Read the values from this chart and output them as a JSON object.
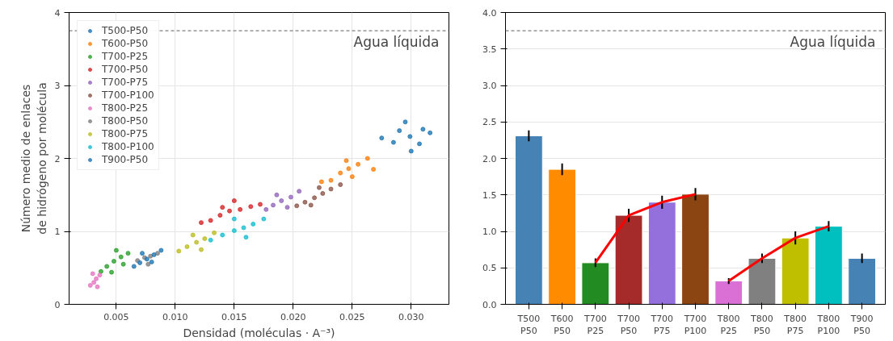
{
  "chart_data": [
    {
      "type": "scatter",
      "xlabel": "Densidad (moléculas · A⁻³)",
      "ylabel": "Número medio de enlaces\nde hidrógeno por molécula",
      "xlim": [
        0.001,
        0.0332
      ],
      "xticks": [
        0.005,
        {
          "value": 0.01,
          "label": "0.010"
        },
        0.015,
        {
          "value": 0.02,
          "label": "0.020"
        },
        0.025,
        {
          "value": 0.03,
          "label": "0.030"
        }
      ],
      "ylim": [
        0,
        4
      ],
      "yticks": [
        0,
        1,
        2,
        3,
        4
      ],
      "grid": true,
      "legend": "top left",
      "marker": "circle",
      "ref_lines": [
        {
          "axis": "y",
          "value": 3.75,
          "label": "Agua líquida",
          "color": "#808080",
          "line_style": "dashed"
        }
      ],
      "series": [
        {
          "name": "T500-P50",
          "color": "#1f77b4",
          "x": [
            0.0299,
            0.0275,
            0.0316,
            0.0295,
            0.03,
            0.0285,
            0.031,
            0.029,
            0.0307
          ],
          "values": [
            2.3,
            2.28,
            2.35,
            2.5,
            2.1,
            2.22,
            2.4,
            2.38,
            2.2
          ]
        },
        {
          "name": "T600-P50",
          "color": "#ff7f0e",
          "x": [
            0.0224,
            0.0232,
            0.024,
            0.0247,
            0.0255,
            0.0263,
            0.025,
            0.0245,
            0.0268
          ],
          "values": [
            1.68,
            1.7,
            1.8,
            1.86,
            1.92,
            2.0,
            1.75,
            1.97,
            1.85
          ]
        },
        {
          "name": "T700-P25",
          "color": "#2ca02c",
          "x": [
            0.0037,
            0.0042,
            0.0048,
            0.0054,
            0.006,
            0.005,
            0.0046,
            0.0056
          ],
          "values": [
            0.45,
            0.52,
            0.59,
            0.65,
            0.7,
            0.74,
            0.44,
            0.55
          ]
        },
        {
          "name": "T700-P50",
          "color": "#d62728",
          "x": [
            0.0122,
            0.013,
            0.0138,
            0.0146,
            0.0155,
            0.0164,
            0.0172,
            0.015,
            0.014
          ],
          "values": [
            1.12,
            1.15,
            1.22,
            1.28,
            1.3,
            1.34,
            1.37,
            1.42,
            1.33
          ]
        },
        {
          "name": "T700-P75",
          "color": "#9467bd",
          "x": [
            0.0177,
            0.0183,
            0.019,
            0.0198,
            0.0205,
            0.0186,
            0.0195
          ],
          "values": [
            1.3,
            1.36,
            1.42,
            1.47,
            1.55,
            1.5,
            1.33
          ]
        },
        {
          "name": "T700-P100",
          "color": "#8c564b",
          "x": [
            0.0203,
            0.021,
            0.0218,
            0.0225,
            0.0232,
            0.024,
            0.0222,
            0.0215
          ],
          "values": [
            1.35,
            1.4,
            1.46,
            1.52,
            1.58,
            1.64,
            1.6,
            1.36
          ]
        },
        {
          "name": "T800-P25",
          "color": "#e377c2",
          "x": [
            0.0028,
            0.0031,
            0.0033,
            0.0036,
            0.003,
            0.0034
          ],
          "values": [
            0.26,
            0.3,
            0.35,
            0.4,
            0.42,
            0.24
          ]
        },
        {
          "name": "T800-P50",
          "color": "#7f7f7f",
          "x": [
            0.0068,
            0.0074,
            0.0079,
            0.0085,
            0.0077
          ],
          "values": [
            0.6,
            0.64,
            0.66,
            0.7,
            0.55
          ]
        },
        {
          "name": "T800-P75",
          "color": "#bcbd22",
          "x": [
            0.0103,
            0.011,
            0.0118,
            0.0125,
            0.0133,
            0.0115,
            0.0122
          ],
          "values": [
            0.73,
            0.79,
            0.85,
            0.9,
            0.98,
            0.95,
            0.75
          ]
        },
        {
          "name": "T800-P100",
          "color": "#17becf",
          "x": [
            0.013,
            0.014,
            0.015,
            0.0158,
            0.0166,
            0.0175,
            0.016,
            0.015
          ],
          "values": [
            0.88,
            0.95,
            1.01,
            1.05,
            1.1,
            1.17,
            0.92,
            1.17
          ]
        },
        {
          "name": "T900-P50",
          "color": "#1f77b4",
          "x": [
            0.0065,
            0.007,
            0.0076,
            0.0082,
            0.0088,
            0.008,
            0.0072
          ],
          "values": [
            0.52,
            0.57,
            0.62,
            0.68,
            0.74,
            0.58,
            0.7
          ]
        }
      ]
    },
    {
      "type": "bar",
      "categories": [
        "T500\nP50",
        "T600\nP50",
        "T700\nP25",
        "T700\nP50",
        "T700\nP75",
        "T700\nP100",
        "T800\nP25",
        "T800\nP50",
        "T800\nP75",
        "T800\nP100",
        "T900\nP50"
      ],
      "ylim": [
        0,
        4.0
      ],
      "yticks": [
        {
          "value": 0,
          "label": "0.0"
        },
        0.5,
        {
          "value": 1,
          "label": "1.0"
        },
        1.5,
        {
          "value": 2,
          "label": "2.0"
        },
        2.5,
        {
          "value": 3,
          "label": "3.0"
        },
        3.5,
        {
          "value": 4,
          "label": "4.0"
        }
      ],
      "grid": "y",
      "ref_lines": [
        {
          "axis": "y",
          "value": 3.75,
          "label": "Agua líquida",
          "color": "#808080",
          "line_style": "dashed"
        }
      ],
      "series": [
        {
          "type": "bar",
          "colors": [
            "#4682b4",
            "#ff8c00",
            "#228b22",
            "#a52a2a",
            "#9370db",
            "#8b4513",
            "#da70d6",
            "#808080",
            "#bfbf00",
            "#00bfbf",
            "#4682b4"
          ],
          "values": [
            2.31,
            1.85,
            0.57,
            1.22,
            1.4,
            1.51,
            0.32,
            0.63,
            0.91,
            1.07,
            0.63
          ],
          "errors": [
            0.075,
            0.08,
            0.06,
            0.09,
            0.09,
            0.085,
            0.04,
            0.065,
            0.09,
            0.07,
            0.065
          ]
        },
        {
          "type": "line",
          "color": "#ff0000",
          "values": [
            null,
            null,
            0.57,
            1.22,
            1.4,
            1.51,
            null,
            null,
            null,
            null,
            null
          ]
        },
        {
          "type": "line",
          "color": "#ff0000",
          "values": [
            null,
            null,
            null,
            null,
            null,
            null,
            0.32,
            0.63,
            0.91,
            1.07,
            null
          ]
        }
      ]
    }
  ]
}
